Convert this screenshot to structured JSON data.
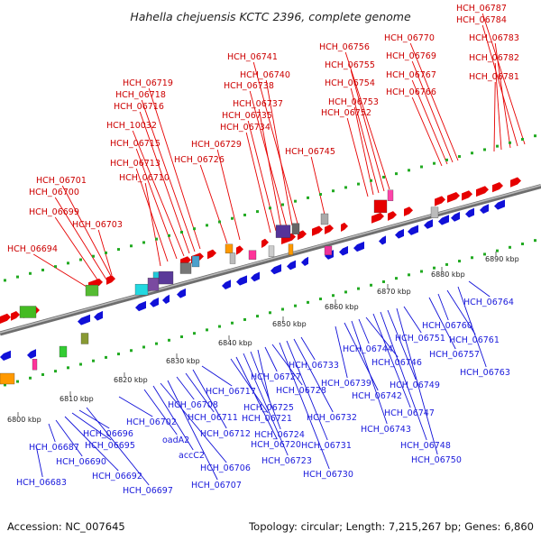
{
  "title": "Hahella chejuensis KCTC 2396, complete genome",
  "accession": "Accession: NC_007645",
  "summary": "Topology: circular; Length: 7,215,267 bp; Genes: 6,860",
  "colors": {
    "forward": "#e60000",
    "reverse": "#1010d8",
    "axis": "#888888",
    "dots": "#22aa22"
  },
  "ticks": [
    "6800 kbp",
    "6810 kbp",
    "6820 kbp",
    "6830 kbp",
    "6840 kbp",
    "6850 kbp",
    "6860 kbp",
    "6870 kbp",
    "6880 kbp",
    "6890 kbp"
  ],
  "top_labels": [
    "HCH_06694",
    "HCH_06699",
    "HCH_06700",
    "HCH_06701",
    "HCH_06703",
    "HCH_06710",
    "HCH_06713",
    "HCH_06715",
    "HCH_10032",
    "HCH_06716",
    "HCH_06718",
    "HCH_06719",
    "HCH_06726",
    "HCH_06729",
    "HCH_06734",
    "HCH_06735",
    "HCH_06737",
    "HCH_06738",
    "HCH_06740",
    "HCH_06741",
    "HCH_06745",
    "HCH_06752",
    "HCH_06753",
    "HCH_06754",
    "HCH_06755",
    "HCH_06756",
    "HCH_06766",
    "HCH_06767",
    "HCH_06769",
    "HCH_06770",
    "HCH_06781",
    "HCH_06782",
    "HCH_06783",
    "HCH_06784",
    "HCH_06787"
  ],
  "bottom_labels": [
    "HCH_06683",
    "HCH_06687",
    "HCH_06690",
    "HCH_06692",
    "HCH_06695",
    "HCH_06696",
    "HCH_06697",
    "HCH_06702",
    "oadA2",
    "accC2",
    "HCH_06706",
    "HCH_06707",
    "HCH_06708",
    "HCH_06711",
    "HCH_06712",
    "HCH_06717",
    "HCH_06720",
    "HCH_06721",
    "HCH_06723",
    "HCH_06724",
    "HCH_06725",
    "HCH_06727",
    "HCH_06728",
    "HCH_06730",
    "HCH_06731",
    "HCH_06732",
    "HCH_06733",
    "HCH_06739",
    "HCH_06742",
    "HCH_06743",
    "HCH_06744",
    "HCH_06746",
    "HCH_06747",
    "HCH_06748",
    "HCH_06749",
    "HCH_06750",
    "HCH_06751",
    "HCH_06757",
    "HCH_06760",
    "HCH_06761",
    "HCH_06763",
    "HCH_06764"
  ]
}
